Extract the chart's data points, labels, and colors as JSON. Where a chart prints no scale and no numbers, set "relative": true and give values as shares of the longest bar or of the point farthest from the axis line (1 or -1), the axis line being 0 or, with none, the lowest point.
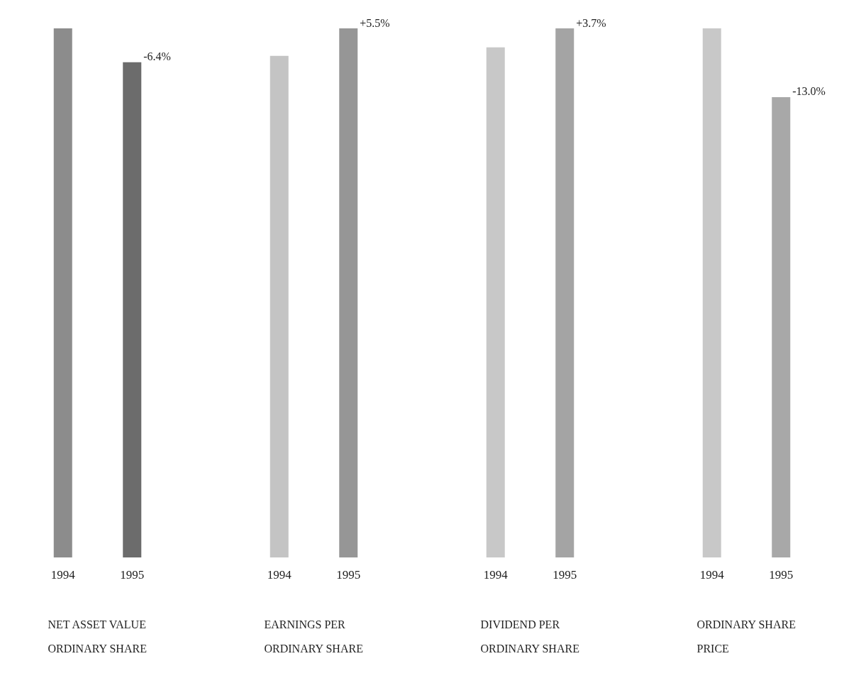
{
  "chart_data": [
    {
      "type": "bar",
      "relative": true,
      "categories": [
        "1994",
        "1995"
      ],
      "values": [
        1,
        0.936
      ],
      "colors": [
        "#8c8c8c",
        "#6c6c6c"
      ],
      "xlabel": "NET ASSET VALUE ORDINARY SHARE",
      "annotations": [
        {
          "text": "-6.4%",
          "x": "1995",
          "y": 0.936
        }
      ]
    },
    {
      "type": "bar",
      "relative": true,
      "categories": [
        "1994",
        "1995"
      ],
      "values": [
        0.948,
        1
      ],
      "colors": [
        "#c4c4c4",
        "#969696"
      ],
      "xlabel": "EARNINGS PER ORDINARY SHARE",
      "annotations": [
        {
          "text": "+5.5%",
          "x": "1995",
          "y": 1
        }
      ]
    },
    {
      "type": "bar",
      "relative": true,
      "categories": [
        "1994",
        "1995"
      ],
      "values": [
        0.964,
        1
      ],
      "colors": [
        "#c8c8c8",
        "#a4a4a4"
      ],
      "xlabel": "DIVIDEND PER ORDINARY SHARE",
      "annotations": [
        {
          "text": "+3.7%",
          "x": "1995",
          "y": 1
        }
      ]
    },
    {
      "type": "bar",
      "relative": true,
      "categories": [
        "1994",
        "1995"
      ],
      "values": [
        1,
        0.87
      ],
      "colors": [
        "#c8c8c8",
        "#a8a8a8"
      ],
      "xlabel": "ORDINARY SHARE PRICE",
      "annotations": [
        {
          "text": "-13.0%",
          "x": "1995",
          "y": 0.87
        }
      ]
    }
  ]
}
